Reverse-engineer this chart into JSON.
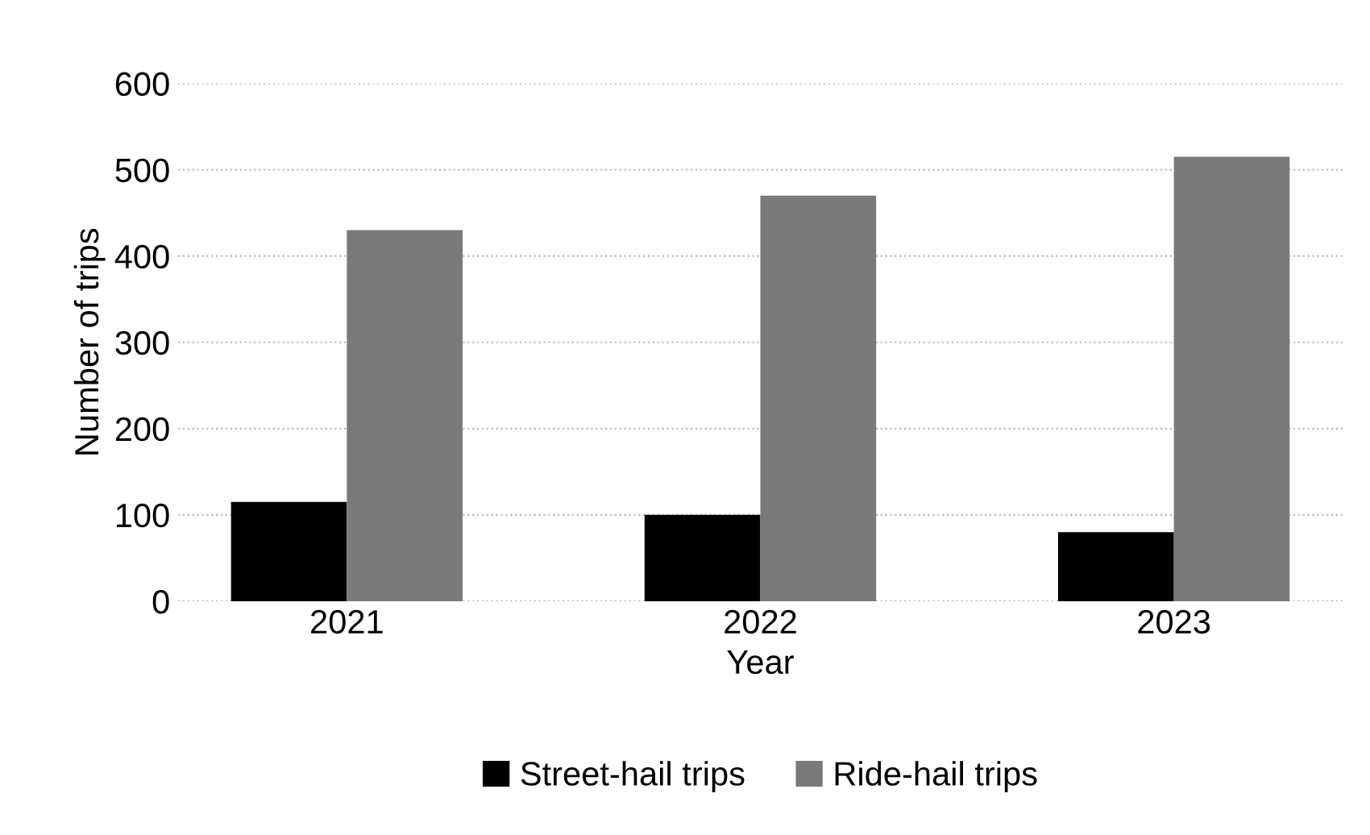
{
  "chart_data": {
    "type": "bar",
    "xlabel": "Year",
    "ylabel": "Number of trips",
    "categories": [
      "2021",
      "2022",
      "2023"
    ],
    "series": [
      {
        "name": "Street-hail trips",
        "color": "#000000",
        "values": [
          115,
          100,
          80
        ]
      },
      {
        "name": "Ride-hail trips",
        "color": "#7a7a7a",
        "values": [
          430,
          470,
          515
        ]
      }
    ],
    "ylim": [
      0,
      600
    ],
    "yticks": [
      0,
      100,
      200,
      300,
      400,
      500,
      600
    ],
    "grid": "y",
    "legend": "bottom"
  }
}
